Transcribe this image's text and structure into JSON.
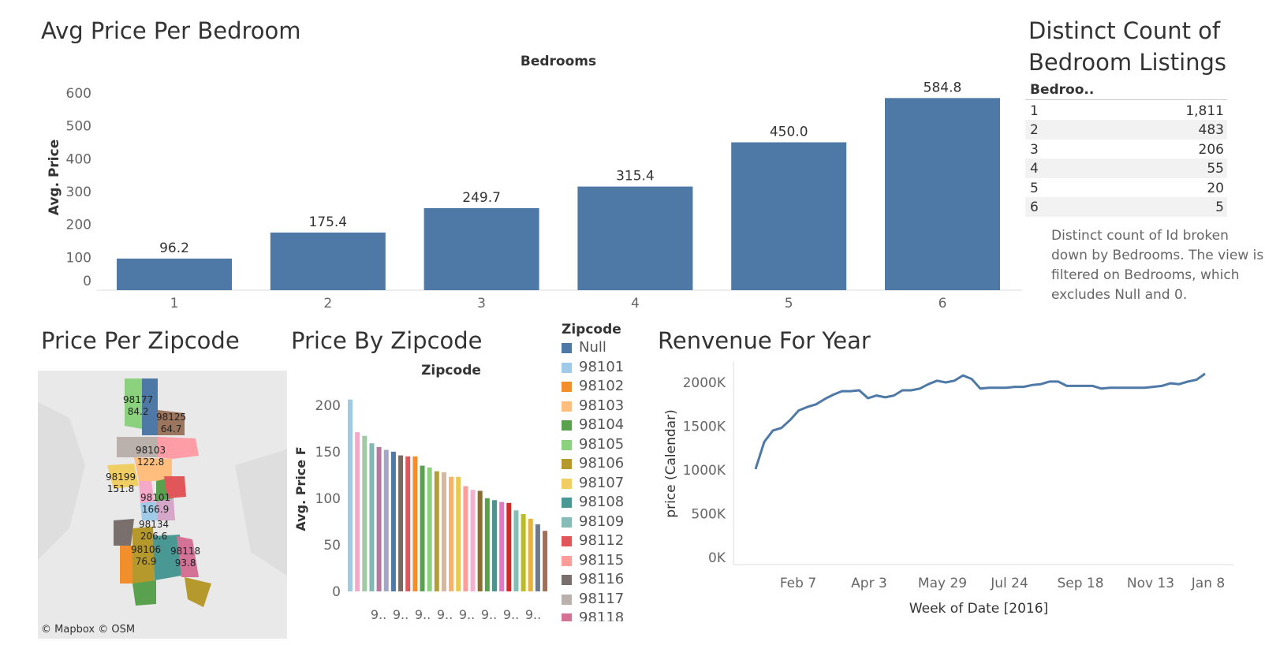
{
  "titles": {
    "avg_price": "Avg Price Per Bedroom",
    "distinct_count_line1": "Distinct Count of",
    "distinct_count_line2": "Bedroom Listings",
    "price_per_zip": "Price Per Zipcode",
    "price_by_zip": "Price By Zipcode",
    "revenue": "Renvenue For Year"
  },
  "colors": {
    "bar": "#4e79a7",
    "line": "#4e79a7"
  },
  "chart_data": [
    {
      "type": "bar",
      "title": "Avg Price Per Bedroom",
      "top_label": "Bedrooms",
      "categories": [
        "1",
        "2",
        "3",
        "4",
        "5",
        "6"
      ],
      "values": [
        96.2,
        175.4,
        249.7,
        315.4,
        450.0,
        584.8
      ],
      "value_labels": [
        "96.2",
        "175.4",
        "249.7",
        "315.4",
        "450.0",
        "584.8"
      ],
      "ylabel": "Avg. Price",
      "yticks": [
        "0",
        "100",
        "200",
        "300",
        "400",
        "500",
        "600"
      ],
      "ylim": [
        0,
        600
      ],
      "grid": false
    },
    {
      "type": "bar",
      "title": "Price By Zipcode",
      "top_label": "Zipcode",
      "ylabel": "Avg. Price F",
      "yticks": [
        "0",
        "50",
        "100",
        "150",
        "200"
      ],
      "ylim": [
        0,
        210
      ],
      "values": [
        206,
        171,
        167,
        159,
        155,
        152,
        150,
        146,
        145,
        145,
        135,
        133,
        129,
        128,
        123,
        123,
        113,
        109,
        108,
        100,
        98,
        96,
        95,
        87,
        83,
        78,
        72,
        65
      ],
      "colors": [
        "#9fcae1",
        "#f5a8c8",
        "#a1c9a4",
        "#7fb9b3",
        "#b7779f",
        "#a5a5c9",
        "#4e79a7",
        "#7a6a63",
        "#e15759",
        "#f28e2b",
        "#59a14f",
        "#8bd07e",
        "#b0a03a",
        "#d4b8a2",
        "#f5b26b",
        "#edc948",
        "#ff9d9a",
        "#f6b0cf",
        "#8c6d31",
        "#59a14f",
        "#4e948e",
        "#e377c2",
        "#d62728",
        "#86bcb6",
        "#bcbd22",
        "#e6b33c",
        "#6b7b8c",
        "#a0715a"
      ],
      "tick_labels": [
        "9..",
        "9..",
        "9..",
        "9..",
        "9..",
        "9..",
        "9..",
        "9.."
      ],
      "grid": false
    },
    {
      "type": "line",
      "title": "Renvenue For Year",
      "xlabel": "Week of Date [2016]",
      "ylabel": "price (Calendar)",
      "yticks": [
        "0K",
        "500K",
        "1000K",
        "1500K",
        "2000K"
      ],
      "ylim": [
        0,
        2000000
      ],
      "xticks": [
        "Feb 7",
        "Apr 3",
        "May 29",
        "Jul 24",
        "Sep 18",
        "Nov 13",
        "Jan 8"
      ],
      "x": [
        "2016-01-04",
        "2016-01-11",
        "2016-01-18",
        "2016-01-25",
        "2016-02-01",
        "2016-02-08",
        "2016-02-15",
        "2016-02-22",
        "2016-02-29",
        "2016-03-07",
        "2016-03-14",
        "2016-03-21",
        "2016-03-28",
        "2016-04-04",
        "2016-04-11",
        "2016-04-18",
        "2016-04-25",
        "2016-05-02",
        "2016-05-09",
        "2016-05-16",
        "2016-05-23",
        "2016-05-30",
        "2016-06-06",
        "2016-06-13",
        "2016-06-20",
        "2016-06-27",
        "2016-07-04",
        "2016-07-11",
        "2016-07-18",
        "2016-07-25",
        "2016-08-01",
        "2016-08-08",
        "2016-08-15",
        "2016-08-22",
        "2016-08-29",
        "2016-09-05",
        "2016-09-12",
        "2016-09-19",
        "2016-09-26",
        "2016-10-03",
        "2016-10-10",
        "2016-10-17",
        "2016-10-24",
        "2016-10-31",
        "2016-11-07",
        "2016-11-14",
        "2016-11-21",
        "2016-11-28",
        "2016-12-05",
        "2016-12-12",
        "2016-12-19",
        "2016-12-26",
        "2017-01-02"
      ],
      "y": [
        1010000,
        1320000,
        1450000,
        1480000,
        1570000,
        1680000,
        1720000,
        1750000,
        1810000,
        1860000,
        1900000,
        1900000,
        1910000,
        1820000,
        1850000,
        1830000,
        1850000,
        1910000,
        1910000,
        1930000,
        1980000,
        2020000,
        2000000,
        2020000,
        2080000,
        2040000,
        1930000,
        1940000,
        1940000,
        1940000,
        1950000,
        1950000,
        1970000,
        1980000,
        2010000,
        2010000,
        1960000,
        1960000,
        1960000,
        1960000,
        1930000,
        1940000,
        1940000,
        1940000,
        1940000,
        1940000,
        1950000,
        1960000,
        1990000,
        1980000,
        2010000,
        2030000,
        2100000
      ]
    }
  ],
  "distinct_table": {
    "header": "Bedroo..",
    "rows": [
      {
        "k": "1",
        "v": "1,811"
      },
      {
        "k": "2",
        "v": "483"
      },
      {
        "k": "3",
        "v": "206"
      },
      {
        "k": "4",
        "v": "55"
      },
      {
        "k": "5",
        "v": "20"
      },
      {
        "k": "6",
        "v": "5"
      }
    ],
    "note": "Distinct count of Id broken down by Bedrooms. The view is filtered on Bedrooms, which excludes Null and 0."
  },
  "legend": {
    "title": "Zipcode",
    "items": [
      {
        "label": "Null",
        "color": "#4e79a7"
      },
      {
        "label": "98101",
        "color": "#a0cbe8"
      },
      {
        "label": "98102",
        "color": "#f28e2b"
      },
      {
        "label": "98103",
        "color": "#ffbe7d"
      },
      {
        "label": "98104",
        "color": "#59a14f"
      },
      {
        "label": "98105",
        "color": "#8cd17d"
      },
      {
        "label": "98106",
        "color": "#b6992d"
      },
      {
        "label": "98107",
        "color": "#f1ce63"
      },
      {
        "label": "98108",
        "color": "#499894"
      },
      {
        "label": "98109",
        "color": "#86bcb6"
      },
      {
        "label": "98112",
        "color": "#e15759"
      },
      {
        "label": "98115",
        "color": "#ff9d9a"
      },
      {
        "label": "98116",
        "color": "#79706e"
      },
      {
        "label": "98117",
        "color": "#bab0ac"
      },
      {
        "label": "98118",
        "color": "#d37295"
      }
    ]
  },
  "map": {
    "credit": "© Mapbox © OSM",
    "labels": [
      {
        "zip": "98177",
        "val": "84.2"
      },
      {
        "zip": "98125",
        "val": "64.7"
      },
      {
        "zip": "98103",
        "val": "122.8"
      },
      {
        "zip": "98199",
        "val": "151.8"
      },
      {
        "zip": "98101",
        "val": "166.9"
      },
      {
        "zip": "98134",
        "val": "206.6"
      },
      {
        "zip": "98106",
        "val": "76.9"
      },
      {
        "zip": "98118",
        "val": "93.8"
      }
    ]
  }
}
